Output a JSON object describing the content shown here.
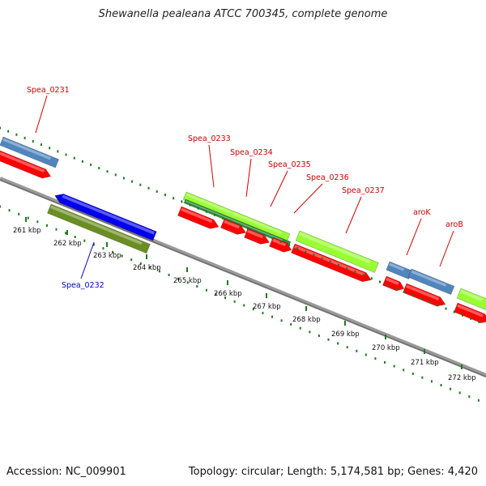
{
  "map": {
    "title": "Shewanella pealeana ATCC 700345, complete genome",
    "accession": "Accession: NC_009901",
    "topology": "Topology: circular; Length: 5,174,581 bp; Genes: 4,420"
  },
  "colors": {
    "cds": "#ff0000",
    "annotated_gene_blue": "#4f86bd",
    "neg_strand_cds": "#0000ee",
    "olive_feature": "#6b8e23",
    "lime_feature": "#99ff33",
    "dark_green_feature": "#2e8b3a",
    "backbone": "#888888",
    "tick_green": "#1e7b1e",
    "label_red": "#cc0000",
    "label_blue": "#0000cc"
  },
  "gene_labels": [
    {
      "text": "Spea_0231",
      "color": "red"
    },
    {
      "text": "Spea_0232",
      "color": "blue"
    },
    {
      "text": "Spea_0233",
      "color": "red"
    },
    {
      "text": "Spea_0234",
      "color": "red"
    },
    {
      "text": "Spea_0235",
      "color": "red"
    },
    {
      "text": "Spea_0236",
      "color": "red"
    },
    {
      "text": "Spea_0237",
      "color": "red"
    },
    {
      "text": "aroK",
      "color": "red"
    },
    {
      "text": "aroB",
      "color": "red"
    }
  ],
  "ticks": [
    "261 kbp",
    "262 kbp",
    "263 kbp",
    "264 kbp",
    "265 kbp",
    "266 kbp",
    "267 kbp",
    "268 kbp",
    "269 kbp",
    "270 kbp",
    "271 kbp",
    "272 kbp"
  ]
}
